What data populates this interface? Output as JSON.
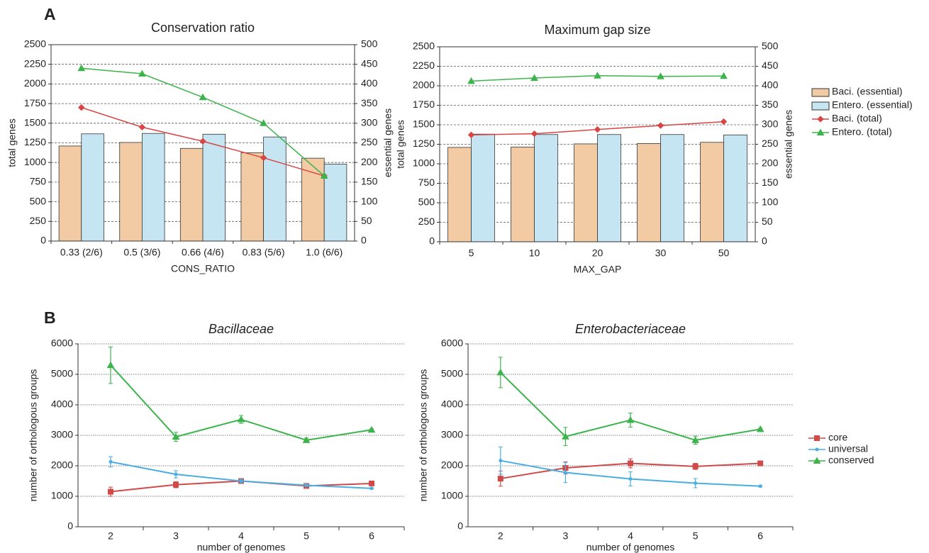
{
  "panels": [
    "A",
    "B"
  ],
  "chart_data": [
    {
      "type": "bar_line",
      "title": "Conservation ratio",
      "xlabel": "CONS_RATIO",
      "ylabel": "total genes",
      "y2label": "essential genes",
      "categories": [
        "0.33 (2/6)",
        "0.5 (3/6)",
        "0.66 (4/6)",
        "0.83 (5/6)",
        "1.0 (6/6)"
      ],
      "ylim": [
        0,
        2500
      ],
      "yticks": [
        0,
        250,
        500,
        750,
        1000,
        1250,
        1500,
        1750,
        2000,
        2250,
        2500
      ],
      "y2lim": [
        0,
        500
      ],
      "y2ticks": [
        0,
        50,
        100,
        150,
        200,
        250,
        300,
        350,
        400,
        450,
        500
      ],
      "grid": true,
      "series": [
        {
          "type": "bar",
          "axis": "y2",
          "color": "#f2cba5",
          "values": [
            242,
            251,
            236,
            225,
            211
          ]
        },
        {
          "type": "bar",
          "axis": "y2",
          "color": "#c5e5f2",
          "values": [
            273,
            274,
            272,
            265,
            196
          ]
        },
        {
          "type": "line",
          "marker": "diamond",
          "color": "#d94545",
          "values": [
            1700,
            1450,
            1270,
            1060,
            830
          ]
        },
        {
          "type": "line",
          "marker": "triangle",
          "color": "#3cb44b",
          "values": [
            2200,
            2130,
            1830,
            1500,
            830
          ]
        }
      ]
    },
    {
      "type": "bar_line",
      "title": "Maximum gap size",
      "xlabel": "MAX_GAP",
      "ylabel": "total genes",
      "y2label": "essential genes",
      "categories": [
        "5",
        "10",
        "20",
        "30",
        "50"
      ],
      "ylim": [
        0,
        2500
      ],
      "yticks": [
        0,
        250,
        500,
        750,
        1000,
        1250,
        1500,
        1750,
        2000,
        2250,
        2500
      ],
      "y2lim": [
        0,
        500
      ],
      "y2ticks": [
        0,
        50,
        100,
        150,
        200,
        250,
        300,
        350,
        400,
        450,
        500
      ],
      "grid": true,
      "legend": "right",
      "series": [
        {
          "name": "Baci. (essential)",
          "type": "bar",
          "axis": "y2",
          "color": "#f2cba5",
          "values": [
            242,
            243,
            251,
            252,
            255
          ]
        },
        {
          "name": "Entero. (essential)",
          "type": "bar",
          "axis": "y2",
          "color": "#c5e5f2",
          "values": [
            276,
            275,
            275,
            275,
            274
          ]
        },
        {
          "name": "Baci. (total)",
          "type": "line",
          "marker": "diamond",
          "color": "#d94545",
          "values": [
            1370,
            1385,
            1440,
            1490,
            1540
          ]
        },
        {
          "name": "Entero. (total)",
          "type": "line",
          "marker": "triangle",
          "color": "#3cb44b",
          "values": [
            2060,
            2100,
            2130,
            2120,
            2125
          ]
        }
      ]
    },
    {
      "type": "line",
      "title": "Bacillaceae",
      "title_italic": true,
      "xlabel": "number of genomes",
      "ylabel": "number of orthologous groups",
      "x": [
        2,
        3,
        4,
        5,
        6
      ],
      "xlim": [
        1.5,
        6.5
      ],
      "xticks": [
        2,
        3,
        4,
        5,
        6
      ],
      "ylim": [
        0,
        6000
      ],
      "yticks": [
        0,
        1000,
        2000,
        3000,
        4000,
        5000,
        6000
      ],
      "grid": true,
      "series": [
        {
          "marker": "square",
          "color": "#d04a4a",
          "values": [
            1150,
            1380,
            1500,
            1340,
            1420
          ],
          "errors": [
            150,
            100,
            60,
            50,
            30
          ]
        },
        {
          "marker": "circle",
          "color": "#4aaee0",
          "values": [
            2130,
            1720,
            1500,
            1360,
            1260
          ],
          "errors": [
            170,
            120,
            60,
            40,
            20
          ]
        },
        {
          "marker": "triangle",
          "color": "#3cb44b",
          "values": [
            5300,
            2950,
            3520,
            2840,
            3180
          ],
          "errors": [
            600,
            150,
            130,
            70,
            30
          ]
        }
      ]
    },
    {
      "type": "line",
      "title": "Enterobacteriaceae",
      "title_italic": true,
      "xlabel": "number of genomes",
      "ylabel": "number of orthologous groups",
      "x": [
        2,
        3,
        4,
        5,
        6
      ],
      "xlim": [
        1.5,
        6.5
      ],
      "xticks": [
        2,
        3,
        4,
        5,
        6
      ],
      "ylim": [
        0,
        6000
      ],
      "yticks": [
        0,
        1000,
        2000,
        3000,
        4000,
        5000,
        6000
      ],
      "grid": true,
      "legend": "right",
      "series": [
        {
          "name": "core",
          "marker": "square",
          "color": "#d04a4a",
          "values": [
            1580,
            1930,
            2080,
            1980,
            2080
          ],
          "errors": [
            250,
            200,
            150,
            100,
            30
          ]
        },
        {
          "name": "universal",
          "marker": "circle",
          "color": "#4aaee0",
          "values": [
            2170,
            1780,
            1570,
            1430,
            1330
          ],
          "errors": [
            450,
            330,
            230,
            150,
            20
          ]
        },
        {
          "name": "conserved",
          "marker": "triangle",
          "color": "#3cb44b",
          "values": [
            5060,
            2960,
            3500,
            2840,
            3200
          ],
          "errors": [
            500,
            300,
            230,
            130,
            30
          ]
        }
      ]
    }
  ]
}
